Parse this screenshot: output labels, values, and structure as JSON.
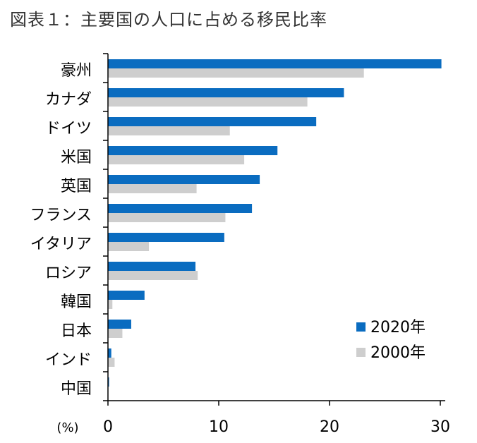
{
  "title": "図表１：主要国の人口に占める移民比率",
  "chart_data": {
    "type": "bar",
    "orientation": "horizontal",
    "title": "図表１：主要国の人口に占める移民比率",
    "categories": [
      "豪州",
      "カナダ",
      "ドイツ",
      "米国",
      "英国",
      "フランス",
      "イタリア",
      "ロシア",
      "韓国",
      "日本",
      "インド",
      "中国"
    ],
    "series": [
      {
        "name": "2020年",
        "color": "#0a6cc0",
        "values": [
          30.1,
          21.3,
          18.8,
          15.3,
          13.7,
          13.0,
          10.5,
          7.9,
          3.3,
          2.1,
          0.3,
          0.1
        ]
      },
      {
        "name": "2000年",
        "color": "#cecece",
        "values": [
          23.1,
          18.0,
          11.0,
          12.3,
          8.0,
          10.6,
          3.7,
          8.1,
          0.4,
          1.3,
          0.6,
          0.0
        ]
      }
    ],
    "xlim": [
      0,
      30
    ],
    "xticks": [
      0,
      10,
      20,
      30
    ],
    "unit": "(%)",
    "grid": false,
    "legend": "bottom-right"
  }
}
